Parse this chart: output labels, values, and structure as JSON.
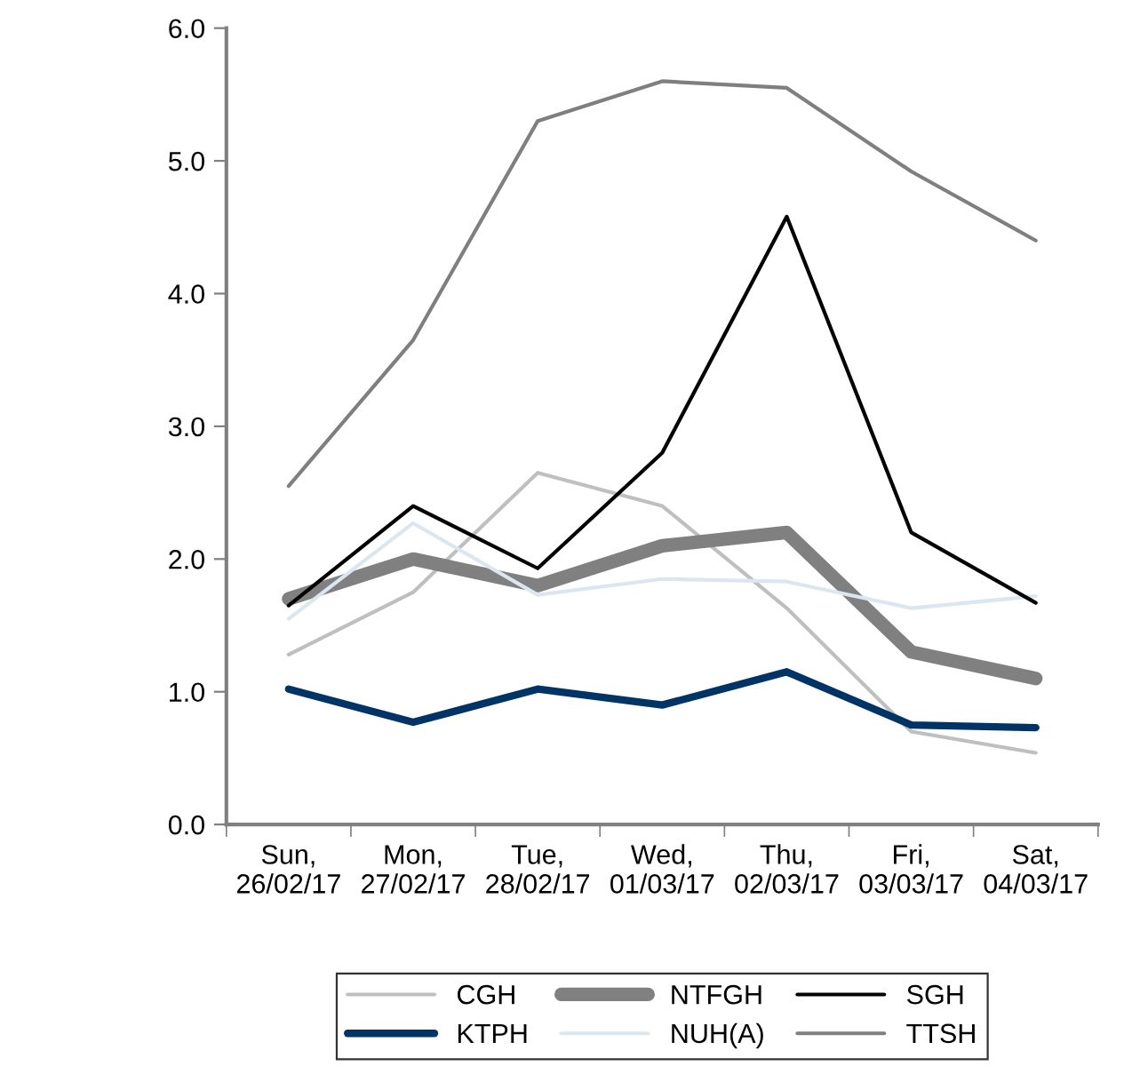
{
  "chart_data": {
    "type": "line",
    "categories": [
      "Sun,\n26/02/17",
      "Mon,\n27/02/17",
      "Tue,\n28/02/17",
      "Wed,\n01/03/17",
      "Thu,\n02/03/17",
      "Fri,\n03/03/17",
      "Sat,\n04/03/17"
    ],
    "series": [
      {
        "name": "CGH",
        "color": "#bfbfbf",
        "values": [
          1.28,
          1.75,
          2.65,
          2.4,
          1.63,
          0.7,
          0.54
        ]
      },
      {
        "name": "KTPH",
        "color": "#003366",
        "values": [
          1.02,
          0.77,
          1.02,
          0.9,
          1.15,
          0.75,
          0.73
        ]
      },
      {
        "name": "NTFGH",
        "color": "#808080",
        "values": [
          1.7,
          2.0,
          1.8,
          2.1,
          2.2,
          1.3,
          1.1
        ]
      },
      {
        "name": "NUH(A)",
        "color": "#dce6f0",
        "values": [
          1.55,
          2.27,
          1.73,
          1.85,
          1.83,
          1.63,
          1.72
        ]
      },
      {
        "name": "SGH",
        "color": "#000000",
        "values": [
          1.65,
          2.4,
          1.93,
          2.8,
          4.58,
          2.2,
          1.67
        ]
      },
      {
        "name": "TTSH",
        "color": "#7f7f7f",
        "values": [
          2.55,
          3.65,
          5.3,
          5.6,
          5.55,
          4.92,
          4.4
        ]
      }
    ],
    "ylim": [
      0,
      6
    ],
    "yticks": [
      {
        "value": 0,
        "label": "0.0"
      },
      {
        "value": 1,
        "label": "1.0"
      },
      {
        "value": 2,
        "label": "2.0"
      },
      {
        "value": 3,
        "label": "3.0"
      },
      {
        "value": 4,
        "label": "4.0"
      },
      {
        "value": 5,
        "label": "5.0"
      },
      {
        "value": 6,
        "label": "6.0"
      }
    ],
    "grid": false,
    "legend": "bottom",
    "marker": "none",
    "line_style": "solid"
  }
}
